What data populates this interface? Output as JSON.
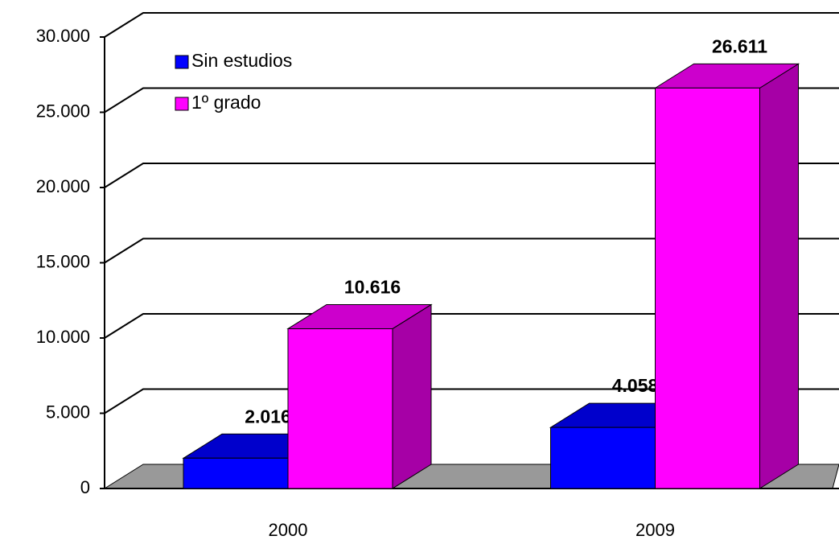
{
  "chart_data": {
    "type": "bar",
    "categories": [
      "2000",
      "2009"
    ],
    "series": [
      {
        "name": "Sin estudios",
        "color": "#0000ff",
        "values": [
          2016,
          4058
        ],
        "value_labels": [
          "2.016",
          "4.058"
        ]
      },
      {
        "name": "1º grado",
        "color": "#ff00ff",
        "values": [
          10616,
          26611
        ],
        "value_labels": [
          "10.616",
          "26.611"
        ]
      }
    ],
    "ylim": [
      0,
      30000
    ],
    "yticks": [
      0,
      {
        "value": 5000,
        "label": "5.000"
      },
      {
        "value": 10000,
        "label": "10.000"
      },
      {
        "value": 15000,
        "label": "15.000"
      },
      {
        "value": 20000,
        "label": "20.000"
      },
      {
        "value": 25000,
        "label": "25.000"
      },
      {
        "value": 30000,
        "label": "30.000"
      }
    ],
    "grid": true,
    "legend": "top-left"
  }
}
